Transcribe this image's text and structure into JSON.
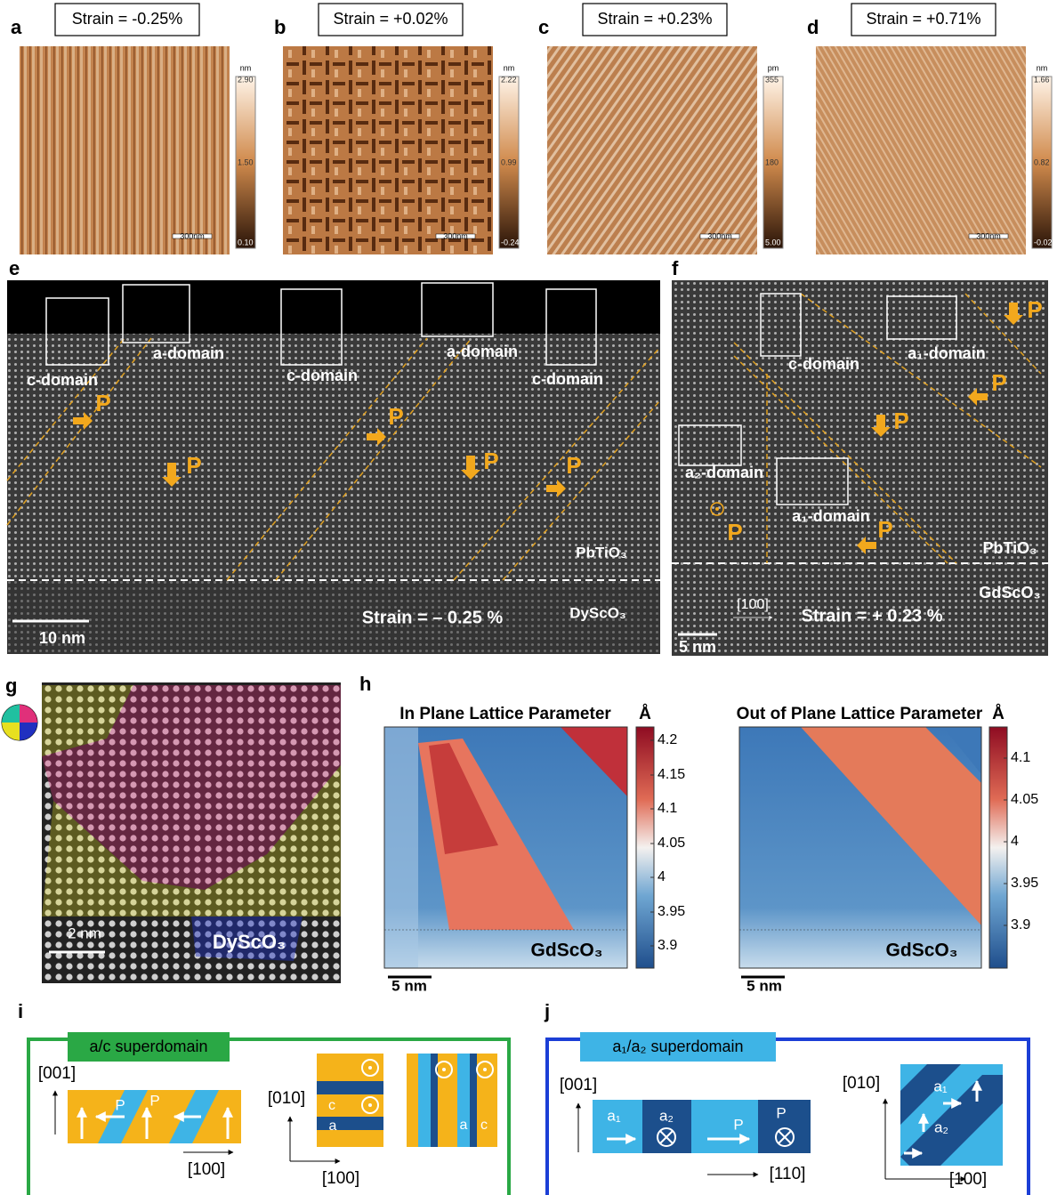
{
  "afm_panels": [
    {
      "letter": "a",
      "strain": "Strain = -0.25%",
      "unit": "nm",
      "ticks": [
        "2.90",
        "1.50",
        "0.10"
      ],
      "scale_bar": "300nm"
    },
    {
      "letter": "b",
      "strain": "Strain = +0.02%",
      "unit": "nm",
      "ticks": [
        "2.22",
        "0.99",
        "-0.24"
      ],
      "scale_bar": "300nm"
    },
    {
      "letter": "c",
      "strain": "Strain = +0.23%",
      "unit": "pm",
      "ticks": [
        "355",
        "180",
        "5.00"
      ],
      "scale_bar": "300nm"
    },
    {
      "letter": "d",
      "strain": "Strain = +0.71%",
      "unit": "nm",
      "ticks": [
        "1.66",
        "0.82",
        "-0.02"
      ],
      "scale_bar": "300nm"
    }
  ],
  "panel_e": {
    "letter": "e",
    "labels": [
      "c-domain",
      "a-domain",
      "c-domain",
      "a-domain",
      "c-domain",
      "P",
      "P",
      "P",
      "P",
      "P",
      "PbTiO₃",
      "DyScO₃",
      "Strain = – 0.25 %",
      "10 nm"
    ]
  },
  "panel_f": {
    "letter": "f",
    "labels": [
      "c-domain",
      "a₁-domain",
      "a₂-domain",
      "a₁-domain",
      "P",
      "P",
      "P",
      "P",
      "P",
      "PbTiO₃",
      "GdScO₃",
      "[100]",
      "Strain = + 0.23 %",
      "5 nm"
    ]
  },
  "panel_g": {
    "letter": "g",
    "scale_bar": "2 nm",
    "substrate": "DyScO₃"
  },
  "panel_h": {
    "letter": "h",
    "maps": [
      {
        "title": "In Plane Lattice Parameter",
        "unit": "Å",
        "ticks": [
          "4.2",
          "4.15",
          "4.1",
          "4.05",
          "4",
          "3.95",
          "3.9"
        ],
        "substrate": "GdScO₃",
        "scale_bar": "5 nm"
      },
      {
        "title": "Out of Plane Lattice Parameter",
        "unit": "Å",
        "ticks": [
          "4.1",
          "4.05",
          "4",
          "3.95",
          "3.9"
        ],
        "substrate": "GdScO₃",
        "scale_bar": "5 nm"
      }
    ]
  },
  "panel_i": {
    "letter": "i",
    "title": "a/c superdomain",
    "labels": [
      "[001]",
      "[100]",
      "P",
      "P",
      "[010]",
      "[100]",
      "c",
      "a",
      "a",
      "c"
    ]
  },
  "panel_j": {
    "letter": "j",
    "title": "a₁/a₂ superdomain",
    "labels": [
      "[001]",
      "a₁",
      "a₂",
      "P",
      "P",
      "[110]",
      "[010]",
      "a₁",
      "a₂",
      "[100]"
    ]
  }
}
